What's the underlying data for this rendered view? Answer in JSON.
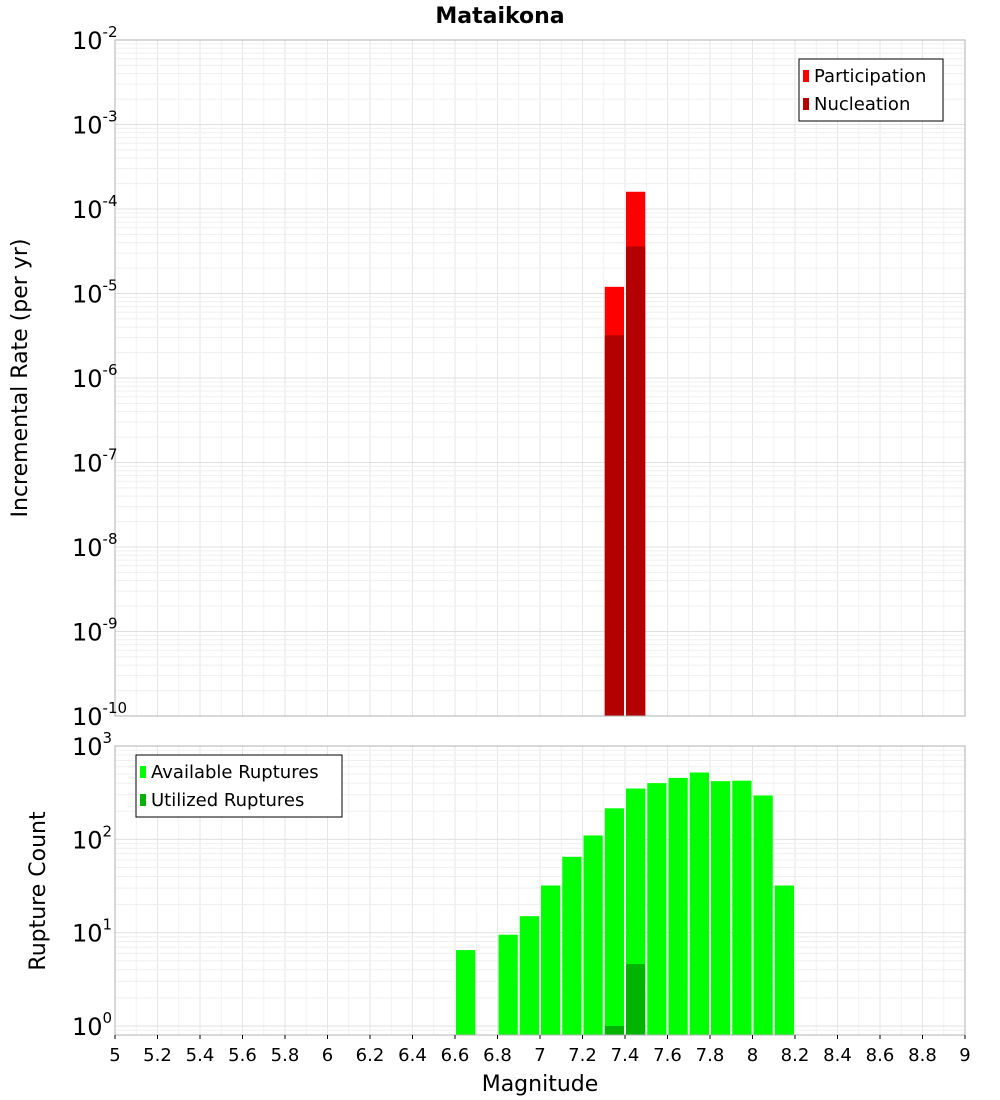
{
  "chart_data": [
    {
      "type": "bar",
      "title": "Mataikona",
      "xlabel": "",
      "ylabel": "Incremental Rate (per yr)",
      "xlim": [
        5,
        9
      ],
      "ylim": [
        1e-10,
        0.01
      ],
      "yscale": "log",
      "y_tick_labels": [
        {
          "base": "10",
          "exp": "-10",
          "value": 1e-10
        },
        {
          "base": "10",
          "exp": "-9",
          "value": 1e-09
        },
        {
          "base": "10",
          "exp": "-8",
          "value": 1e-08
        },
        {
          "base": "10",
          "exp": "-7",
          "value": 1e-07
        },
        {
          "base": "10",
          "exp": "-6",
          "value": 1e-06
        },
        {
          "base": "10",
          "exp": "-5",
          "value": 1e-05
        },
        {
          "base": "10",
          "exp": "-4",
          "value": 0.0001
        },
        {
          "base": "10",
          "exp": "-3",
          "value": 0.001
        },
        {
          "base": "10",
          "exp": "-2",
          "value": 0.01
        }
      ],
      "grid": true,
      "legend_position": "top-right",
      "bar_width": 0.1,
      "series": [
        {
          "name": "Participation",
          "color": "#ff0000",
          "x": [
            7.35,
            7.45
          ],
          "values": [
            1.2e-05,
            0.00016
          ]
        },
        {
          "name": "Nucleation",
          "color": "#b30000",
          "x": [
            7.35,
            7.45
          ],
          "values": [
            3.2e-06,
            3.6e-05
          ]
        }
      ]
    },
    {
      "type": "bar",
      "title": "",
      "xlabel": "Magnitude",
      "ylabel": "Rupture Count",
      "xlim": [
        5,
        9
      ],
      "ylim": [
        0.8,
        1000
      ],
      "yscale": "log",
      "y_tick_labels": [
        {
          "base": "10",
          "exp": "0",
          "value": 1
        },
        {
          "base": "10",
          "exp": "1",
          "value": 10
        },
        {
          "base": "10",
          "exp": "2",
          "value": 100
        },
        {
          "base": "10",
          "exp": "3",
          "value": 1000
        }
      ],
      "x_tick_labels": [
        "5",
        "5.2",
        "5.4",
        "5.6",
        "5.8",
        "6",
        "6.2",
        "6.4",
        "6.6",
        "6.8",
        "7",
        "7.2",
        "7.4",
        "7.6",
        "7.8",
        "8",
        "8.2",
        "8.4",
        "8.6",
        "8.8",
        "9"
      ],
      "grid": true,
      "legend_position": "top-left",
      "bar_width": 0.1,
      "series": [
        {
          "name": "Available Ruptures",
          "color": "#00ff00",
          "x": [
            6.65,
            6.85,
            6.95,
            7.05,
            7.15,
            7.25,
            7.35,
            7.45,
            7.55,
            7.65,
            7.75,
            7.85,
            7.95,
            8.05,
            8.15
          ],
          "values": [
            6.5,
            9.5,
            15,
            32,
            65,
            110,
            215,
            350,
            400,
            455,
            520,
            420,
            425,
            295,
            32
          ]
        },
        {
          "name": "Utilized Ruptures",
          "color": "#00b300",
          "x": [
            7.35,
            7.45
          ],
          "values": [
            1,
            4.6
          ]
        }
      ]
    }
  ]
}
